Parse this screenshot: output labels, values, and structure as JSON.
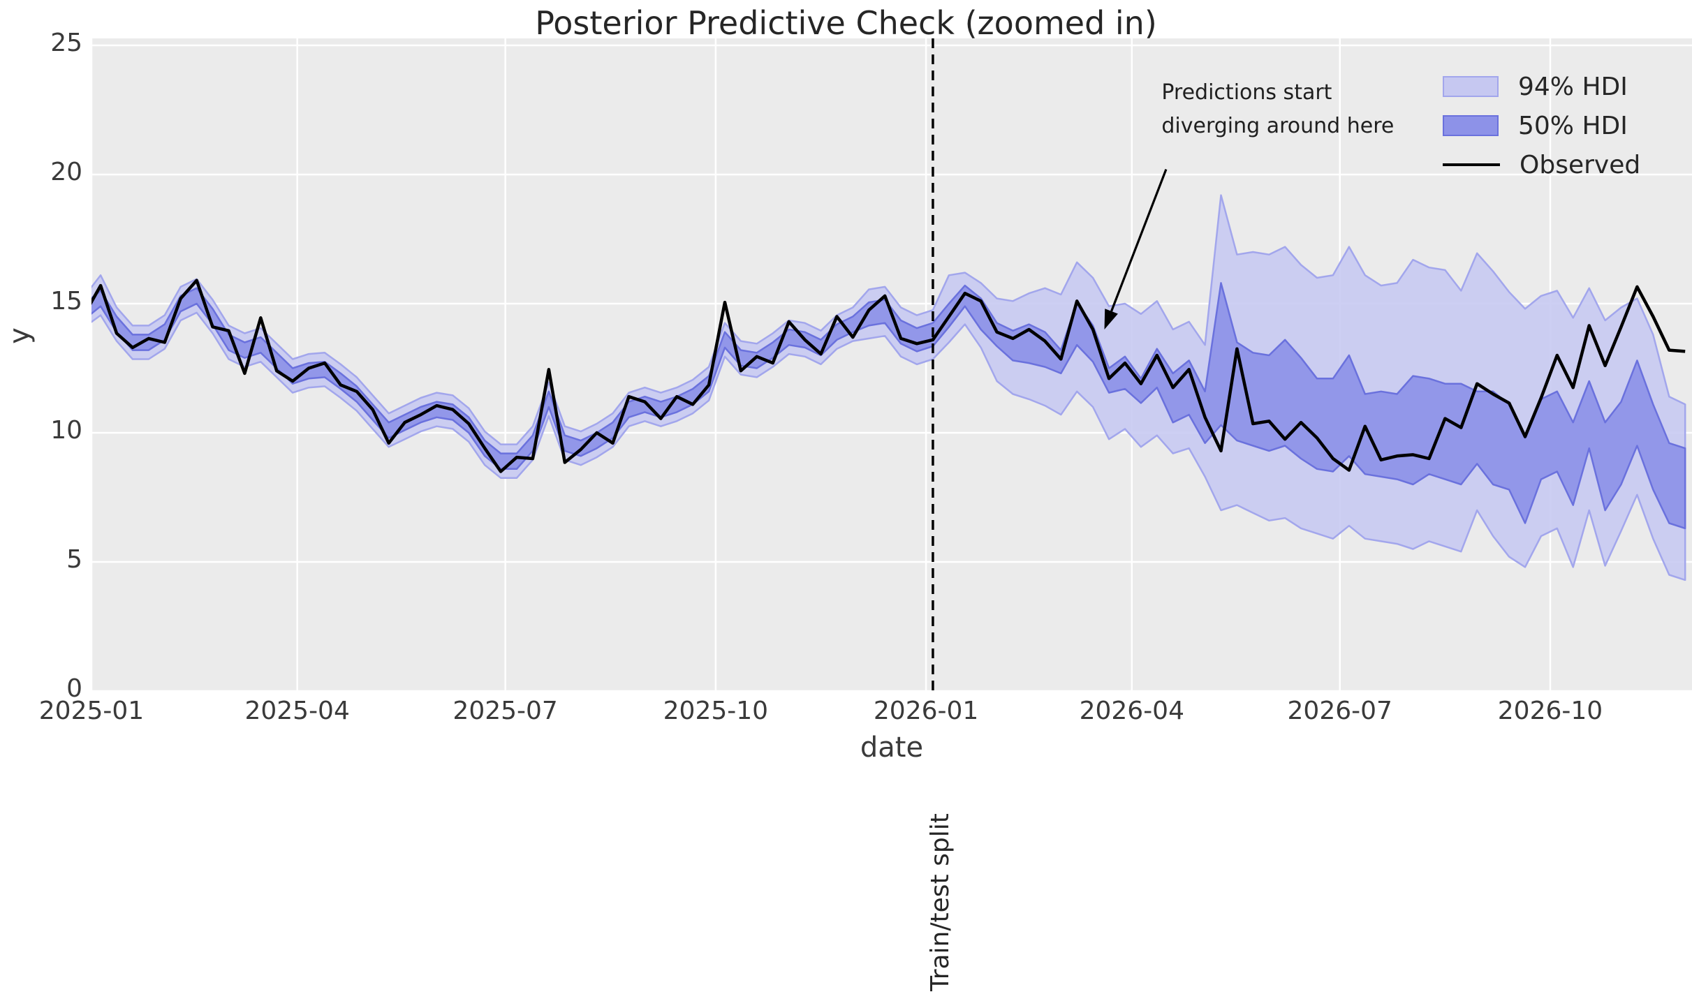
{
  "title": "Posterior Predictive Check (zoomed in)",
  "axes": {
    "xlabel": "date",
    "ylabel": "y",
    "x_ticks": [
      "2025-01",
      "2025-04",
      "2025-07",
      "2025-10",
      "2026-01",
      "2026-04",
      "2026-07",
      "2026-10"
    ],
    "y_ticks": [
      0,
      5,
      10,
      15,
      20,
      25
    ],
    "ylim": [
      0,
      25.27
    ],
    "xlim_days": [
      0,
      700
    ]
  },
  "colors": {
    "figure_bg": "#ffffff",
    "axes_bg": "#ebebeb",
    "grid": "#ffffff",
    "hdi94_fill": "#c6c8f1",
    "hdi94_edge": "#a2a6ec",
    "hdi50_fill": "#8d92e8",
    "hdi50_edge": "#6a71dd",
    "observed": "#000000",
    "split_line": "#000000",
    "text": "#3a3a3a"
  },
  "legend": [
    {
      "label": "94% HDI",
      "type": "patch",
      "fill": "#c6c8f1",
      "edge": "#a2a6ec"
    },
    {
      "label": "50% HDI",
      "type": "patch",
      "fill": "#8d92e8",
      "edge": "#6a71dd"
    },
    {
      "label": "Observed",
      "type": "line",
      "color": "#000000"
    }
  ],
  "annotation": {
    "lines": [
      "Predictions start",
      "diverging around here"
    ],
    "text_pos": {
      "date": "2026-04-14",
      "y": 23.8
    },
    "arrow_from": {
      "date": "2026-04-16",
      "y": 20.2
    },
    "arrow_to": {
      "date": "2026-03-20",
      "y": 14.0
    }
  },
  "split": {
    "label": "Train/test split",
    "date": "2026-01-04"
  },
  "chart_data": {
    "type": "line",
    "title": "Posterior Predictive Check (zoomed in)",
    "xlabel": "date",
    "ylabel": "y",
    "ylim": [
      0,
      25.27
    ],
    "grid": true,
    "legend_position": "upper right",
    "x_tick_labels": [
      "2025-01",
      "2025-04",
      "2025-07",
      "2025-10",
      "2026-01",
      "2026-04",
      "2026-07",
      "2026-10"
    ],
    "y_tick_labels": [
      0,
      5,
      10,
      15,
      20,
      25
    ],
    "x_start_date": "2024-12-29",
    "x_freq_days": 7,
    "split_date": "2026-01-04",
    "split_index": 53,
    "series": [
      {
        "name": "Observed",
        "type": "line",
        "values": [
          14.6,
          15.7,
          13.85,
          13.3,
          13.65,
          13.5,
          15.2,
          15.9,
          14.1,
          13.95,
          12.3,
          14.45,
          12.4,
          12.0,
          12.5,
          12.7,
          11.85,
          11.6,
          10.9,
          9.6,
          10.4,
          10.7,
          11.05,
          10.9,
          10.35,
          9.4,
          8.5,
          9.05,
          9.0,
          12.45,
          8.85,
          9.35,
          10.0,
          9.6,
          11.4,
          11.2,
          10.55,
          11.4,
          11.1,
          11.85,
          15.05,
          12.4,
          12.95,
          12.7,
          14.3,
          13.6,
          13.05,
          14.5,
          13.7,
          14.75,
          15.3,
          13.65,
          13.45,
          13.6,
          14.5,
          15.4,
          15.1,
          13.9,
          13.65,
          14.0,
          13.55,
          12.85,
          15.1,
          14.0,
          12.1,
          12.7,
          11.9,
          13.0,
          11.75,
          12.45,
          10.6,
          9.3,
          13.25,
          10.35,
          10.45,
          9.75,
          10.4,
          9.8,
          9.0,
          8.55,
          10.25,
          8.95,
          9.1,
          9.15,
          9.0,
          10.55,
          10.2,
          11.9,
          11.5,
          11.15,
          9.85,
          11.35,
          13.0,
          11.75,
          14.15,
          12.6,
          14.1,
          15.65,
          14.5,
          13.2,
          13.15
        ]
      },
      {
        "name": "94% HDI",
        "type": "band",
        "hi": [
          15.3,
          16.1,
          14.85,
          14.15,
          14.15,
          14.55,
          15.65,
          15.95,
          15.15,
          14.15,
          13.85,
          14.05,
          13.45,
          12.85,
          13.05,
          13.1,
          12.65,
          12.15,
          11.45,
          10.75,
          11.05,
          11.35,
          11.55,
          11.45,
          10.95,
          10.05,
          9.55,
          9.55,
          10.25,
          11.95,
          10.25,
          10.05,
          10.35,
          10.75,
          11.55,
          11.75,
          11.55,
          11.75,
          12.05,
          12.55,
          14.25,
          13.55,
          13.45,
          13.85,
          14.35,
          14.25,
          13.95,
          14.55,
          14.85,
          15.55,
          15.65,
          14.85,
          14.55,
          14.75,
          16.1,
          16.2,
          15.8,
          15.2,
          15.1,
          15.4,
          15.6,
          15.35,
          16.6,
          16.0,
          14.9,
          15.0,
          14.6,
          15.1,
          14.0,
          14.3,
          13.4,
          19.2,
          16.9,
          17.0,
          16.9,
          17.2,
          16.5,
          16.0,
          16.1,
          17.2,
          16.1,
          15.7,
          15.8,
          16.7,
          16.4,
          16.3,
          15.5,
          16.95,
          16.25,
          15.45,
          14.8,
          15.3,
          15.5,
          14.45,
          15.6,
          14.35,
          14.85,
          15.2,
          13.8,
          11.4,
          11.1
        ],
        "lo": [
          14.1,
          14.55,
          13.55,
          12.85,
          12.85,
          13.25,
          14.35,
          14.65,
          13.85,
          12.85,
          12.55,
          12.75,
          12.15,
          11.55,
          11.75,
          11.8,
          11.35,
          10.85,
          10.15,
          9.45,
          9.75,
          10.05,
          10.25,
          10.15,
          9.65,
          8.75,
          8.25,
          8.25,
          8.95,
          10.65,
          8.95,
          8.75,
          9.05,
          9.45,
          10.25,
          10.45,
          10.25,
          10.45,
          10.75,
          11.25,
          12.95,
          12.25,
          12.15,
          12.55,
          13.05,
          12.95,
          12.65,
          13.25,
          13.55,
          13.65,
          13.75,
          12.95,
          12.65,
          12.85,
          13.5,
          14.2,
          13.3,
          12.0,
          11.5,
          11.3,
          11.05,
          10.7,
          11.6,
          11.0,
          9.75,
          10.15,
          9.45,
          9.9,
          9.2,
          9.4,
          8.3,
          7.0,
          7.2,
          6.9,
          6.6,
          6.7,
          6.3,
          6.1,
          5.9,
          6.4,
          5.9,
          5.8,
          5.7,
          5.5,
          5.8,
          5.6,
          5.4,
          7.0,
          6.0,
          5.2,
          4.8,
          6.0,
          6.3,
          4.8,
          7.0,
          4.85,
          6.2,
          7.6,
          5.9,
          4.5,
          4.3
        ]
      },
      {
        "name": "50% HDI",
        "type": "band",
        "hi": [
          15.0,
          15.5,
          14.5,
          13.8,
          13.8,
          14.2,
          15.3,
          15.6,
          14.8,
          13.8,
          13.5,
          13.7,
          13.1,
          12.5,
          12.7,
          12.75,
          12.3,
          11.8,
          11.1,
          10.4,
          10.7,
          11.0,
          11.2,
          11.1,
          10.6,
          9.7,
          9.2,
          9.2,
          9.9,
          11.6,
          9.9,
          9.7,
          10.0,
          10.4,
          11.2,
          11.4,
          11.2,
          11.4,
          11.7,
          12.2,
          13.9,
          13.2,
          13.1,
          13.5,
          14.0,
          13.9,
          13.6,
          14.2,
          14.5,
          15.05,
          15.15,
          14.35,
          14.05,
          14.25,
          15.0,
          15.7,
          15.2,
          14.25,
          13.95,
          14.2,
          13.9,
          13.2,
          15.05,
          14.15,
          12.5,
          12.95,
          12.1,
          13.25,
          12.3,
          12.8,
          11.6,
          15.8,
          13.5,
          13.1,
          13.0,
          13.6,
          12.9,
          12.1,
          12.1,
          13.0,
          11.5,
          11.6,
          11.5,
          12.2,
          12.1,
          11.9,
          11.9,
          11.6,
          11.6,
          11.1,
          9.8,
          11.3,
          11.6,
          10.4,
          12.0,
          10.4,
          11.2,
          12.8,
          11.1,
          9.6,
          9.4
        ],
        "lo": [
          14.4,
          14.9,
          13.9,
          13.2,
          13.2,
          13.6,
          14.7,
          15.0,
          14.2,
          13.2,
          12.9,
          13.1,
          12.5,
          11.9,
          12.1,
          12.15,
          11.7,
          11.2,
          10.5,
          9.8,
          10.1,
          10.4,
          10.6,
          10.5,
          10.0,
          9.1,
          8.6,
          8.6,
          9.3,
          11.0,
          9.3,
          9.1,
          9.4,
          9.8,
          10.6,
          10.8,
          10.6,
          10.8,
          11.1,
          11.6,
          13.3,
          12.6,
          12.5,
          12.9,
          13.4,
          13.3,
          13.0,
          13.6,
          13.9,
          14.15,
          14.25,
          13.45,
          13.15,
          13.35,
          14.1,
          14.9,
          14.0,
          13.35,
          12.8,
          12.7,
          12.55,
          12.3,
          13.4,
          12.75,
          11.55,
          11.7,
          11.15,
          11.75,
          10.4,
          10.7,
          9.6,
          10.3,
          9.7,
          9.5,
          9.3,
          9.5,
          9.0,
          8.6,
          8.5,
          9.1,
          8.4,
          8.3,
          8.2,
          8.0,
          8.4,
          8.2,
          8.0,
          8.8,
          8.0,
          7.8,
          6.5,
          8.2,
          8.5,
          7.2,
          9.4,
          7.0,
          8.0,
          9.5,
          7.8,
          6.5,
          6.3
        ]
      }
    ]
  }
}
